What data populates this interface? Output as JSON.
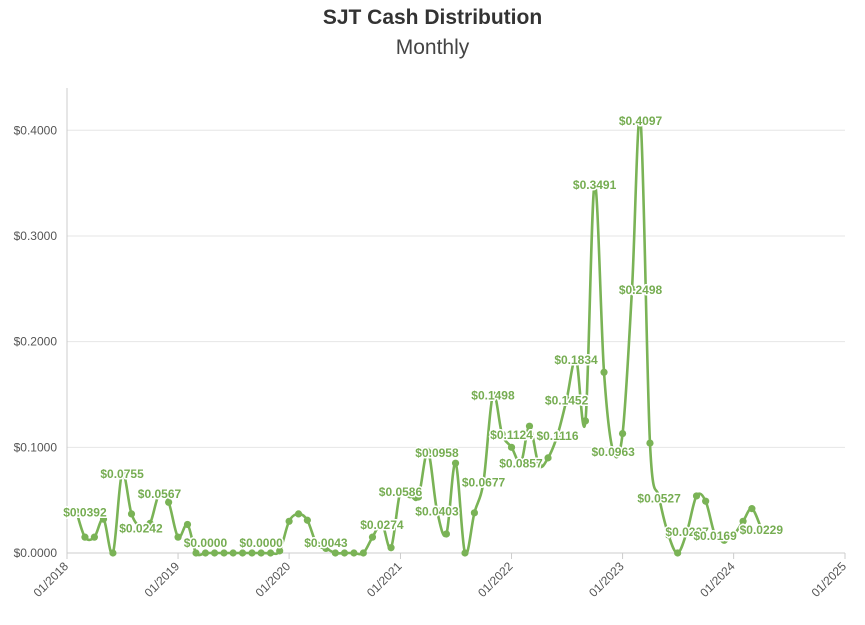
{
  "chart_data": {
    "type": "line",
    "title": "SJT Cash Distribution",
    "subtitle": "Monthly",
    "xlabel": "",
    "ylabel": "",
    "x_ticks": [
      "01/2018",
      "01/2019",
      "01/2020",
      "01/2021",
      "01/2022",
      "01/2023",
      "01/2024",
      "01/2025"
    ],
    "y_ticks": [
      "$0.0000",
      "$0.1000",
      "$0.2000",
      "$0.3000",
      "$0.4000"
    ],
    "xlim": [
      "2018-01-01",
      "2025-01-01"
    ],
    "ylim": [
      0,
      0.44
    ],
    "grid": true,
    "legend": "none",
    "colors": {
      "line": "#7ab356",
      "label": "#76ad52",
      "grid": "#e6e6e6",
      "axis": "#cccccc"
    },
    "series": [
      {
        "points": [
          [
            "2018-02-01",
            0.0392
          ],
          [
            "2018-03-01",
            0.015
          ],
          [
            "2018-04-01",
            0.015
          ],
          [
            "2018-05-01",
            0.032
          ],
          [
            "2018-06-01",
            0.0
          ],
          [
            "2018-07-01",
            0.0755
          ],
          [
            "2018-08-01",
            0.037
          ],
          [
            "2018-09-01",
            0.0242
          ],
          [
            "2018-10-01",
            0.028
          ],
          [
            "2018-11-01",
            0.0567
          ],
          [
            "2018-12-01",
            0.048
          ],
          [
            "2019-01-01",
            0.015
          ],
          [
            "2019-02-01",
            0.027
          ],
          [
            "2019-03-01",
            0.0
          ],
          [
            "2019-04-01",
            0.0
          ],
          [
            "2019-05-01",
            0.0
          ],
          [
            "2019-06-01",
            0.0
          ],
          [
            "2019-07-01",
            0.0
          ],
          [
            "2019-08-01",
            0.0
          ],
          [
            "2019-09-01",
            0.0
          ],
          [
            "2019-10-01",
            0.0
          ],
          [
            "2019-11-01",
            0.0
          ],
          [
            "2019-12-01",
            0.002
          ],
          [
            "2020-01-01",
            0.03
          ],
          [
            "2020-02-01",
            0.037
          ],
          [
            "2020-03-01",
            0.031
          ],
          [
            "2020-04-01",
            0.008
          ],
          [
            "2020-05-01",
            0.0043
          ],
          [
            "2020-06-01",
            0.0
          ],
          [
            "2020-07-01",
            0.0
          ],
          [
            "2020-08-01",
            0.0
          ],
          [
            "2020-09-01",
            0.0
          ],
          [
            "2020-10-01",
            0.015
          ],
          [
            "2020-11-01",
            0.0274
          ],
          [
            "2020-12-01",
            0.005
          ],
          [
            "2021-01-01",
            0.0586
          ],
          [
            "2021-02-01",
            0.055
          ],
          [
            "2021-03-01",
            0.053
          ],
          [
            "2021-04-01",
            0.0958
          ],
          [
            "2021-05-01",
            0.0403
          ],
          [
            "2021-06-01",
            0.018
          ],
          [
            "2021-07-01",
            0.085
          ],
          [
            "2021-08-01",
            0.0
          ],
          [
            "2021-09-01",
            0.038
          ],
          [
            "2021-10-01",
            0.0677
          ],
          [
            "2021-11-01",
            0.1498
          ],
          [
            "2021-12-01",
            0.1124
          ],
          [
            "2022-01-01",
            0.1
          ],
          [
            "2022-02-01",
            0.0857
          ],
          [
            "2022-03-01",
            0.12
          ],
          [
            "2022-04-01",
            0.083
          ],
          [
            "2022-05-01",
            0.09
          ],
          [
            "2022-06-01",
            0.1116
          ],
          [
            "2022-07-01",
            0.1452
          ],
          [
            "2022-08-01",
            0.1834
          ],
          [
            "2022-09-01",
            0.125
          ],
          [
            "2022-10-01",
            0.3491
          ],
          [
            "2022-11-01",
            0.171
          ],
          [
            "2022-12-01",
            0.0963
          ],
          [
            "2023-01-01",
            0.113
          ],
          [
            "2023-02-01",
            0.2498
          ],
          [
            "2023-03-01",
            0.4097
          ],
          [
            "2023-04-01",
            0.104
          ],
          [
            "2023-05-01",
            0.0527
          ],
          [
            "2023-06-01",
            0.017
          ],
          [
            "2023-07-01",
            0.0
          ],
          [
            "2023-08-01",
            0.0207
          ],
          [
            "2023-09-01",
            0.054
          ],
          [
            "2023-10-01",
            0.049
          ],
          [
            "2023-11-01",
            0.0169
          ],
          [
            "2023-12-01",
            0.012
          ],
          [
            "2024-01-01",
            0.0169
          ],
          [
            "2024-02-01",
            0.03
          ],
          [
            "2024-03-01",
            0.042
          ],
          [
            "2024-04-01",
            0.0229
          ]
        ]
      }
    ],
    "data_labels": [
      {
        "x": "2018-03-01",
        "y": 0.0392,
        "text": "$0.0392"
      },
      {
        "x": "2018-07-01",
        "y": 0.0755,
        "text": "$0.0755"
      },
      {
        "x": "2018-09-01",
        "y": 0.0242,
        "text": "$0.0242"
      },
      {
        "x": "2018-11-01",
        "y": 0.0567,
        "text": "$0.0567"
      },
      {
        "x": "2019-04-01",
        "y": 0.0,
        "text": "$0.0000"
      },
      {
        "x": "2019-10-01",
        "y": 0.0,
        "text": "$0.0000"
      },
      {
        "x": "2020-05-01",
        "y": 0.0043,
        "text": "$0.0043"
      },
      {
        "x": "2020-11-01",
        "y": 0.0274,
        "text": "$0.0274"
      },
      {
        "x": "2021-01-01",
        "y": 0.0586,
        "text": "$0.0586"
      },
      {
        "x": "2021-05-01",
        "y": 0.0958,
        "text": "$0.0958"
      },
      {
        "x": "2021-05-01",
        "y": 0.0403,
        "text": "$0.0403"
      },
      {
        "x": "2021-10-01",
        "y": 0.0677,
        "text": "$0.0677"
      },
      {
        "x": "2021-11-01",
        "y": 0.1498,
        "text": "$0.1498"
      },
      {
        "x": "2022-01-01",
        "y": 0.1124,
        "text": "$0.1124"
      },
      {
        "x": "2022-02-01",
        "y": 0.0857,
        "text": "$0.0857"
      },
      {
        "x": "2022-06-01",
        "y": 0.1116,
        "text": "$0.1116"
      },
      {
        "x": "2022-07-01",
        "y": 0.1452,
        "text": "$0.1452"
      },
      {
        "x": "2022-08-01",
        "y": 0.1834,
        "text": "$0.1834"
      },
      {
        "x": "2022-10-01",
        "y": 0.3491,
        "text": "$0.3491"
      },
      {
        "x": "2022-12-01",
        "y": 0.0963,
        "text": "$0.0963"
      },
      {
        "x": "2023-03-01",
        "y": 0.2498,
        "text": "$0.2498"
      },
      {
        "x": "2023-03-01",
        "y": 0.4097,
        "text": "$0.4097"
      },
      {
        "x": "2023-05-01",
        "y": 0.0527,
        "text": "$0.0527"
      },
      {
        "x": "2023-08-01",
        "y": 0.0207,
        "text": "$0.0207"
      },
      {
        "x": "2023-11-01",
        "y": 0.0169,
        "text": "$0.0169"
      },
      {
        "x": "2024-04-01",
        "y": 0.0229,
        "text": "$0.0229"
      }
    ]
  }
}
